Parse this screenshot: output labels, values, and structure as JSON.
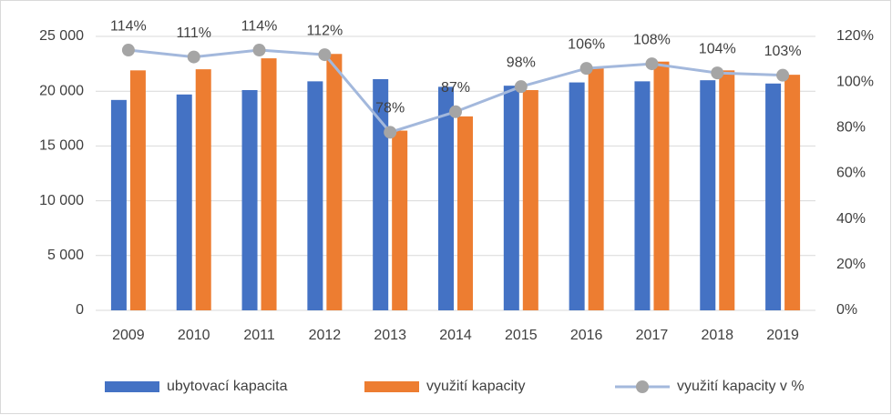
{
  "chart_data": {
    "type": "bar_line",
    "categories": [
      "2009",
      "2010",
      "2011",
      "2012",
      "2013",
      "2014",
      "2015",
      "2016",
      "2017",
      "2018",
      "2019"
    ],
    "series": [
      {
        "name": "ubytovací kapacita",
        "color": "#4472c4",
        "values": [
          19200,
          19700,
          20100,
          20900,
          21100,
          20400,
          20500,
          20800,
          20900,
          21000,
          20700
        ]
      },
      {
        "name": "využití kapacity",
        "color": "#ed7d31",
        "values": [
          21900,
          22000,
          23000,
          23400,
          16400,
          17700,
          20100,
          22100,
          22700,
          21900,
          21500
        ]
      },
      {
        "name": "využití kapacity v %",
        "color": "#a3b8dc",
        "marker_color": "#a5a5a5",
        "axis": "y2",
        "type": "line",
        "values": [
          114,
          111,
          114,
          112,
          78,
          87,
          98,
          106,
          108,
          104,
          103
        ],
        "value_labels": [
          "114%",
          "111%",
          "114%",
          "112%",
          "78%",
          "87%",
          "98%",
          "106%",
          "108%",
          "104%",
          "103%"
        ]
      }
    ],
    "ylim": [
      0,
      25000
    ],
    "yticks": [
      0,
      {
        "value": 5000,
        "label": "5 000"
      },
      {
        "value": 10000,
        "label": "10 000"
      },
      {
        "value": 15000,
        "label": "15 000"
      },
      {
        "value": 20000,
        "label": "20 000"
      },
      {
        "value": 25000,
        "label": "25 000"
      }
    ],
    "y2lim": [
      0,
      120
    ],
    "y2ticks": [
      {
        "value": 0,
        "label": "0%"
      },
      {
        "value": 20,
        "label": "20%"
      },
      {
        "value": 40,
        "label": "40%"
      },
      {
        "value": 60,
        "label": "60%"
      },
      {
        "value": 80,
        "label": "80%"
      },
      {
        "value": 100,
        "label": "100%"
      },
      {
        "value": 120,
        "label": "120%"
      }
    ],
    "grid": true,
    "legend": "bottom"
  }
}
